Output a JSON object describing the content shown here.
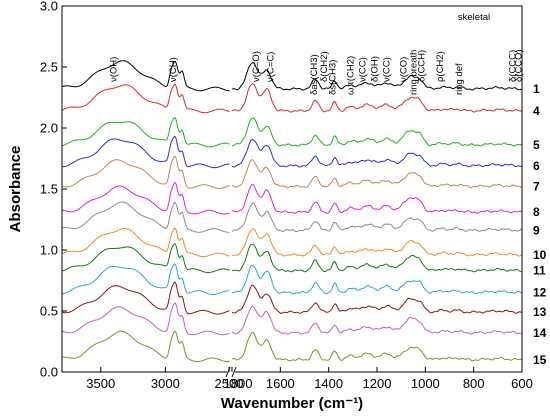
{
  "chart_data": {
    "type": "line",
    "xlabel": "Wavenumber (cm⁻¹)",
    "ylabel": "Absorbance",
    "ylim": [
      0,
      3.0
    ],
    "x_segments": [
      {
        "range": [
          3800,
          2500
        ],
        "ticks": [
          3500,
          3000,
          2500
        ]
      },
      {
        "range": [
          1800,
          600
        ],
        "ticks": [
          1800,
          1600,
          1400,
          1200,
          1000,
          800,
          600
        ]
      }
    ],
    "x_tick_labels": [
      "3500",
      "3000",
      "2500",
      "1800",
      "1600",
      "1400",
      "1200",
      "1000",
      "800",
      "600"
    ],
    "y_ticks": [
      0.0,
      0.5,
      1.0,
      1.5,
      2.0,
      2.5,
      3.0
    ],
    "y_tick_labels": [
      "0.0",
      "0.5",
      "1.0",
      "1.5",
      "2.0",
      "2.5",
      "3.0"
    ],
    "axis_break": true,
    "grid": false,
    "series": [
      {
        "name": "1",
        "color": "#000000",
        "offset": 2.32
      },
      {
        "name": "4",
        "color": "#e32626",
        "offset": 2.14
      },
      {
        "name": "5",
        "color": "#1fb01f",
        "offset": 1.86
      },
      {
        "name": "6",
        "color": "#2a2ad8",
        "offset": 1.69
      },
      {
        "name": "7",
        "color": "#c0825a",
        "offset": 1.52
      },
      {
        "name": "8",
        "color": "#e01ee0",
        "offset": 1.31
      },
      {
        "name": "9",
        "color": "#8a8a8a",
        "offset": 1.16
      },
      {
        "name": "10",
        "color": "#f08a1e",
        "offset": 0.96
      },
      {
        "name": "11",
        "color": "#0e7a0e",
        "offset": 0.83
      },
      {
        "name": "12",
        "color": "#22a8dc",
        "offset": 0.65
      },
      {
        "name": "13",
        "color": "#8a1414",
        "offset": 0.49
      },
      {
        "name": "14",
        "color": "#c060c0",
        "offset": 0.32
      },
      {
        "name": "15",
        "color": "#8a8a2a",
        "offset": 0.1
      }
    ],
    "annotations": [
      {
        "text": "ν(OH)",
        "x": 3400,
        "angle": -90
      },
      {
        "text": "ν(CH)",
        "x": 2940,
        "angle": -90
      },
      {
        "text": "ν(C=O)",
        "x": 1700,
        "angle": -90
      },
      {
        "text": "ν(C=C)",
        "x": 1640,
        "angle": -90
      },
      {
        "text": "δas(CH3)",
        "x": 1460,
        "angle": -90
      },
      {
        "text": "δ(CH2)",
        "x": 1420,
        "angle": -90
      },
      {
        "text": "δs(CH3)",
        "x": 1385,
        "angle": -90
      },
      {
        "text": "ω,τ(CH2)",
        "x": 1310,
        "angle": -90
      },
      {
        "text": "ν(CC)",
        "x": 1260,
        "angle": -90
      },
      {
        "text": "δ(OH)",
        "x": 1210,
        "angle": -90
      },
      {
        "text": "ν(CC)",
        "x": 1160,
        "angle": -90
      },
      {
        "text": "ν(CO)",
        "x": 1090,
        "angle": -90
      },
      {
        "text": "ring breath",
        "x": 1050,
        "angle": -90
      },
      {
        "text": "δ(CCH)",
        "x": 1015,
        "angle": -90
      },
      {
        "text": "ρ(CH2)",
        "x": 940,
        "angle": -90
      },
      {
        "text": "ring def",
        "x": 860,
        "angle": -90
      },
      {
        "text": "δ(CCC)",
        "x": 640,
        "angle": -90
      },
      {
        "text": "δ(CCO)",
        "x": 615,
        "angle": -90
      },
      {
        "text": "skeletal",
        "x": 720,
        "angle": 0
      }
    ]
  }
}
